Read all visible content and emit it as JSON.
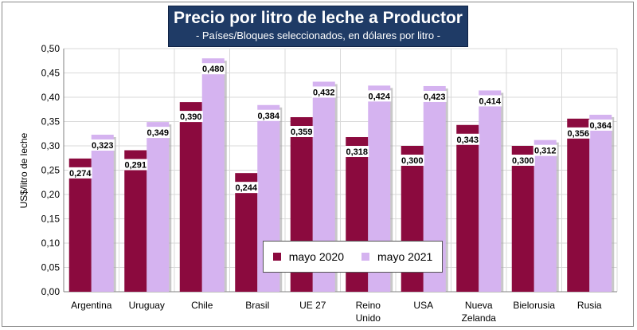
{
  "chart_data": {
    "type": "bar",
    "title": "Precio por litro de leche a Productor",
    "subtitle": "- Países/Bloques seleccionados, en dólares por litro -",
    "xlabel": "",
    "ylabel": "US$/litro de leche",
    "ylim": [
      0,
      0.5
    ],
    "yticks": [
      "0,00",
      "0,05",
      "0,10",
      "0,15",
      "0,20",
      "0,25",
      "0,30",
      "0,35",
      "0,40",
      "0,45",
      "0,50"
    ],
    "categories": [
      [
        "Argentina"
      ],
      [
        "Uruguay"
      ],
      [
        "Chile"
      ],
      [
        "Brasil"
      ],
      [
        "UE 27"
      ],
      [
        "Reino",
        "Unido"
      ],
      [
        "USA"
      ],
      [
        "Nueva",
        "Zelanda"
      ],
      [
        "Bielorusia"
      ],
      [
        "Rusia"
      ]
    ],
    "series": [
      {
        "name": "mayo 2020",
        "color": "#8b0a3e",
        "values": [
          0.274,
          0.291,
          0.39,
          0.244,
          0.359,
          0.318,
          0.3,
          0.343,
          0.3,
          0.356
        ],
        "labels": [
          "0,274",
          "0,291",
          "0,390",
          "0,244",
          "0,359",
          "0,318",
          "0,300",
          "0,343",
          "0,300",
          "0,356"
        ]
      },
      {
        "name": "mayo 2021",
        "color": "#d5b3f0",
        "values": [
          0.323,
          0.349,
          0.48,
          0.384,
          0.432,
          0.424,
          0.423,
          0.414,
          0.312,
          0.364
        ],
        "labels": [
          "0,323",
          "0,349",
          "0,480",
          "0,384",
          "0,432",
          "0,424",
          "0,423",
          "0,414",
          "0,312",
          "0,364"
        ]
      }
    ],
    "grid": true,
    "legend_position": "bottom-center"
  }
}
